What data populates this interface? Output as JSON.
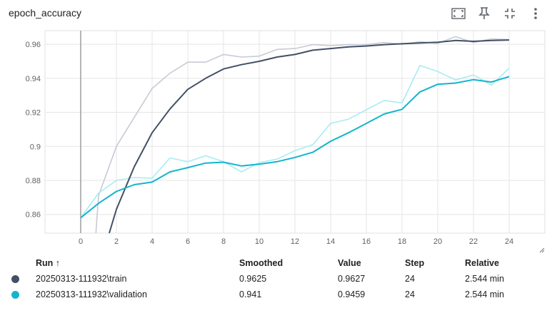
{
  "card": {
    "title": "epoch_accuracy",
    "toolbar": [
      {
        "name": "fit-domain-icon"
      },
      {
        "name": "pin-icon"
      },
      {
        "name": "collapse-icon"
      },
      {
        "name": "more-vert-icon"
      }
    ]
  },
  "chart_data": {
    "type": "line",
    "title": "",
    "xlabel": "",
    "ylabel": "",
    "xlim": [
      -2,
      26
    ],
    "ylim": [
      0.849,
      0.968
    ],
    "x_ticks": [
      "0",
      "2",
      "4",
      "6",
      "8",
      "10",
      "12",
      "14",
      "16",
      "18",
      "20",
      "22",
      "24"
    ],
    "y_ticks": [
      "0.86",
      "0.88",
      "0.9",
      "0.92",
      "0.94",
      "0.96"
    ],
    "grid": true,
    "colors": {
      "train": "#425066",
      "train_raw": "#c8cad5",
      "validation": "#12b5cb",
      "validation_raw": "#a7ecf3"
    },
    "series": [
      {
        "name": "20250313-111932\\train",
        "smoothed": true,
        "x": [
          1.6,
          2,
          3,
          4,
          5,
          6,
          7,
          8,
          9,
          10,
          11,
          12,
          13,
          14,
          15,
          16,
          17,
          18,
          19,
          20,
          21,
          22,
          23,
          24
        ],
        "values": [
          0.849,
          0.863,
          0.888,
          0.908,
          0.922,
          0.9335,
          0.94,
          0.9455,
          0.948,
          0.95,
          0.9525,
          0.954,
          0.9565,
          0.9575,
          0.9585,
          0.959,
          0.9598,
          0.9603,
          0.9608,
          0.9612,
          0.9622,
          0.9617,
          0.9622,
          0.9625
        ]
      },
      {
        "name": "20250313-111932\\train-raw",
        "smoothed": false,
        "x": [
          0.85,
          1,
          2,
          3,
          4,
          5,
          6,
          7,
          8,
          9,
          10,
          11,
          12,
          13,
          14,
          15,
          16,
          17,
          18,
          19,
          20,
          21,
          22,
          23,
          24
        ],
        "values": [
          0.849,
          0.871,
          0.9,
          0.917,
          0.934,
          0.943,
          0.9495,
          0.9495,
          0.954,
          0.9525,
          0.953,
          0.957,
          0.9575,
          0.9598,
          0.9592,
          0.9598,
          0.9598,
          0.961,
          0.96,
          0.9615,
          0.9605,
          0.9645,
          0.961,
          0.9632,
          0.9627
        ]
      },
      {
        "name": "20250313-111932\\validation",
        "smoothed": true,
        "x": [
          0,
          1,
          2,
          3,
          4,
          5,
          6,
          7,
          8,
          9,
          10,
          11,
          12,
          13,
          14,
          15,
          16,
          17,
          18,
          19,
          20,
          21,
          22,
          23,
          24
        ],
        "values": [
          0.858,
          0.8665,
          0.8735,
          0.8775,
          0.879,
          0.885,
          0.8875,
          0.8902,
          0.8907,
          0.8885,
          0.8895,
          0.891,
          0.8935,
          0.8965,
          0.903,
          0.908,
          0.9135,
          0.919,
          0.9218,
          0.932,
          0.9365,
          0.9372,
          0.9392,
          0.9378,
          0.941
        ]
      },
      {
        "name": "20250313-111932\\validation-raw",
        "smoothed": false,
        "x": [
          0,
          1,
          2,
          3,
          4,
          5,
          6,
          7,
          8,
          9,
          10,
          11,
          12,
          13,
          14,
          15,
          16,
          17,
          18,
          19,
          20,
          21,
          22,
          23,
          24
        ],
        "values": [
          0.858,
          0.8725,
          0.88,
          0.8817,
          0.8813,
          0.8932,
          0.891,
          0.8945,
          0.891,
          0.885,
          0.8905,
          0.8925,
          0.8975,
          0.901,
          0.9135,
          0.916,
          0.9215,
          0.927,
          0.9255,
          0.9475,
          0.944,
          0.939,
          0.942,
          0.936,
          0.9459
        ]
      }
    ]
  },
  "table": {
    "headers": {
      "run": "Run",
      "smoothed": "Smoothed",
      "value": "Value",
      "step": "Step",
      "relative": "Relative"
    },
    "sort_arrow": "↑",
    "rows": [
      {
        "run": "20250313-111932\\train",
        "smoothed": "0.9625",
        "value": "0.9627",
        "step": "24",
        "relative": "2.544 min",
        "color": "#425066"
      },
      {
        "run": "20250313-111932\\validation",
        "smoothed": "0.941",
        "value": "0.9459",
        "step": "24",
        "relative": "2.544 min",
        "color": "#12b5cb"
      }
    ]
  }
}
